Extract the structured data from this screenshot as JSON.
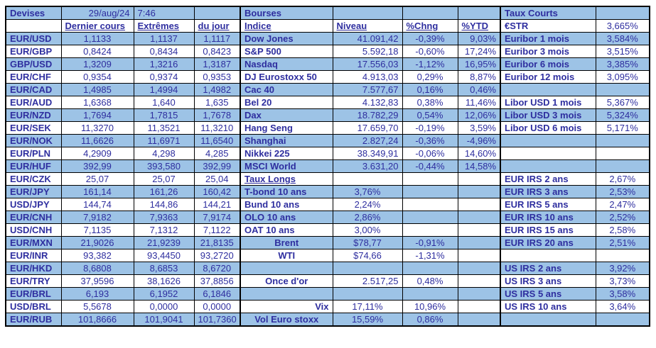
{
  "colors": {
    "highlight": "#9DC3E6",
    "text": "#2E2E9F",
    "border": "#000000"
  },
  "fx": {
    "title": "Devises",
    "date": "29/aug/24",
    "time": "7:46",
    "col_headers": [
      "Dernier cours",
      "Extrêmes",
      "du jour"
    ],
    "rows": [
      [
        "EUR/USD",
        "1,1133",
        "1,1137",
        "1,1117"
      ],
      [
        "EUR/GBP",
        "0,8424",
        "0,8434",
        "0,8423"
      ],
      [
        "GBP/USD",
        "1,3209",
        "1,3216",
        "1,3187"
      ],
      [
        "EUR/CHF",
        "0,9354",
        "0,9374",
        "0,9353"
      ],
      [
        "EUR/CAD",
        "1,4985",
        "1,4994",
        "1,4982"
      ],
      [
        "EUR/AUD",
        "1,6368",
        "1,640",
        "1,635"
      ],
      [
        "EUR/NZD",
        "1,7694",
        "1,7815",
        "1,7678"
      ],
      [
        "EUR/SEK",
        "11,3270",
        "11,3521",
        "11,3210"
      ],
      [
        "EUR/NOK",
        "11,6626",
        "11,6971",
        "11,6540"
      ],
      [
        "EUR/PLN",
        "4,2909",
        "4,298",
        "4,285"
      ],
      [
        "EUR/HUF",
        "392,99",
        "393,580",
        "392,99"
      ],
      [
        "EUR/CZK",
        "25,07",
        "25,07",
        "25,04"
      ],
      [
        "EUR/JPY",
        "161,14",
        "161,26",
        "160,42"
      ],
      [
        "USD/JPY",
        "144,74",
        "144,86",
        "144,21"
      ],
      [
        "EUR/CNH",
        "7,9182",
        "7,9363",
        "7,9174"
      ],
      [
        "USD/CNH",
        "7,1135",
        "7,1312",
        "7,1122"
      ],
      [
        "EUR/MXN",
        "21,9026",
        "21,9239",
        "21,8135"
      ],
      [
        "EUR/INR",
        "93,382",
        "93,4450",
        "93,2720"
      ],
      [
        "EUR/HKD",
        "8,6808",
        "8,6853",
        "8,6720"
      ],
      [
        "EUR/TRY",
        "37,9596",
        "38,1626",
        "37,8856"
      ],
      [
        "EUR/BRL",
        "6,193",
        "6,1952",
        "6,1846"
      ],
      [
        "USD/BRL",
        "5,5678",
        "0,0000",
        "0,0000"
      ],
      [
        "EUR/RUB",
        "101,8666",
        "101,9041",
        "101,7360"
      ]
    ]
  },
  "markets": {
    "title": "Bourses",
    "col_headers": [
      "Indice",
      "Niveau",
      "%Chng",
      "%YTD"
    ],
    "rows": [
      {
        "label": "Dow Jones",
        "niveau": "41.091,42",
        "chng": "-0,39%",
        "ytd": "9,03%"
      },
      {
        "label": "S&P 500",
        "niveau": "5.592,18",
        "chng": "-0,60%",
        "ytd": "17,24%"
      },
      {
        "label": "Nasdaq",
        "niveau": "17.556,03",
        "chng": "-1,12%",
        "ytd": "16,95%"
      },
      {
        "label": "DJ Eurostoxx 50",
        "niveau": "4.913,03",
        "chng": "0,29%",
        "ytd": "8,87%"
      },
      {
        "label": "Cac 40",
        "niveau": "7.577,67",
        "chng": "0,16%",
        "ytd": "0,46%"
      },
      {
        "label": "Bel 20",
        "niveau": "4.132,83",
        "chng": "0,38%",
        "ytd": "11,46%"
      },
      {
        "label": "Dax",
        "niveau": "18.782,29",
        "chng": "0,54%",
        "ytd": "12,06%"
      },
      {
        "label": "Hang Seng",
        "niveau": "17.659,70",
        "chng": "-0,19%",
        "ytd": "3,59%"
      },
      {
        "label": "Shanghai",
        "niveau": "2.827,24",
        "chng": "-0,36%",
        "ytd": "-4,96%"
      },
      {
        "label": "Nikkei 225",
        "niveau": "38.349,91",
        "chng": "-0,06%",
        "ytd": "14,60%"
      },
      {
        "label": "MSCI World",
        "niveau": "3.631,20",
        "chng": "-0,44%",
        "ytd": "14,58%"
      },
      {
        "label": "Taux Longs",
        "underline": true,
        "niveau": "",
        "chng": "",
        "ytd": ""
      },
      {
        "label": "T-bond 10 ans",
        "niveau": "3,76%",
        "niveau_align": "center",
        "chng": "",
        "ytd": ""
      },
      {
        "label": "Bund 10 ans",
        "niveau": "2,24%",
        "niveau_align": "center",
        "chng": "",
        "ytd": ""
      },
      {
        "label": "OLO 10 ans",
        "niveau": "2,86%",
        "niveau_align": "center",
        "chng": "",
        "ytd": ""
      },
      {
        "label": "OAT 10 ans",
        "niveau": "3,00%",
        "niveau_align": "center",
        "chng": "",
        "ytd": ""
      },
      {
        "label": "Brent",
        "label_align": "center",
        "niveau": "$78,77",
        "niveau_align": "center",
        "chng": "-0,91%",
        "ytd": ""
      },
      {
        "label": "WTI",
        "label_align": "center",
        "niveau": "$74,66",
        "niveau_align": "center",
        "chng": "-1,31%",
        "ytd": ""
      },
      {
        "label": "",
        "niveau": "",
        "chng": "",
        "ytd": ""
      },
      {
        "label": "Once d'or",
        "label_align": "center",
        "niveau": "2.517,25",
        "chng": "0,48%",
        "ytd": ""
      },
      {
        "label": "",
        "niveau": "",
        "chng": "",
        "ytd": ""
      },
      {
        "label": "Vix",
        "label_align": "right",
        "niveau": "17,11%",
        "niveau_align": "center",
        "chng": "10,96%",
        "ytd": ""
      },
      {
        "label": "Vol Euro stoxx",
        "label_align": "center",
        "niveau": "15,59%",
        "niveau_align": "center",
        "chng": "0,86%",
        "ytd": ""
      }
    ]
  },
  "rates": {
    "title": "Taux Courts",
    "rows": [
      {
        "label": "€STR",
        "value": "3,665%"
      },
      {
        "label": "Euribor 1 mois",
        "value": "3,584%"
      },
      {
        "label": "Euribor 3 mois",
        "value": "3,515%"
      },
      {
        "label": "Euribor 6 mois",
        "value": "3,385%"
      },
      {
        "label": "Euribor 12 mois",
        "value": "3,095%"
      },
      {
        "label": "",
        "value": ""
      },
      {
        "label": "Libor USD 1 mois",
        "value": "5,367%"
      },
      {
        "label": "Libor USD 3 mois",
        "value": "5,324%"
      },
      {
        "label": "Libor USD 6 mois",
        "value": "5,171%"
      },
      {
        "label": "",
        "value": ""
      },
      {
        "label": "",
        "value": ""
      },
      {
        "label": "",
        "value": ""
      },
      {
        "label": "EUR IRS 2 ans",
        "value": "2,67%"
      },
      {
        "label": "EUR IRS 3 ans",
        "value": "2,53%"
      },
      {
        "label": "EUR IRS 5 ans",
        "value": "2,47%"
      },
      {
        "label": "EUR IRS 10 ans",
        "value": "2,52%"
      },
      {
        "label": "EUR IRS 15 ans",
        "value": "2,58%"
      },
      {
        "label": "EUR IRS 20 ans",
        "value": "2,51%"
      },
      {
        "label": "",
        "value": ""
      },
      {
        "label": "US IRS 2 ans",
        "value": "3,92%"
      },
      {
        "label": "US IRS 3 ans",
        "value": "3,73%"
      },
      {
        "label": "US IRS 5 ans",
        "value": "3,58%"
      },
      {
        "label": "US IRS 10 ans",
        "value": "3,64%"
      },
      {
        "label": "",
        "value": ""
      }
    ]
  }
}
